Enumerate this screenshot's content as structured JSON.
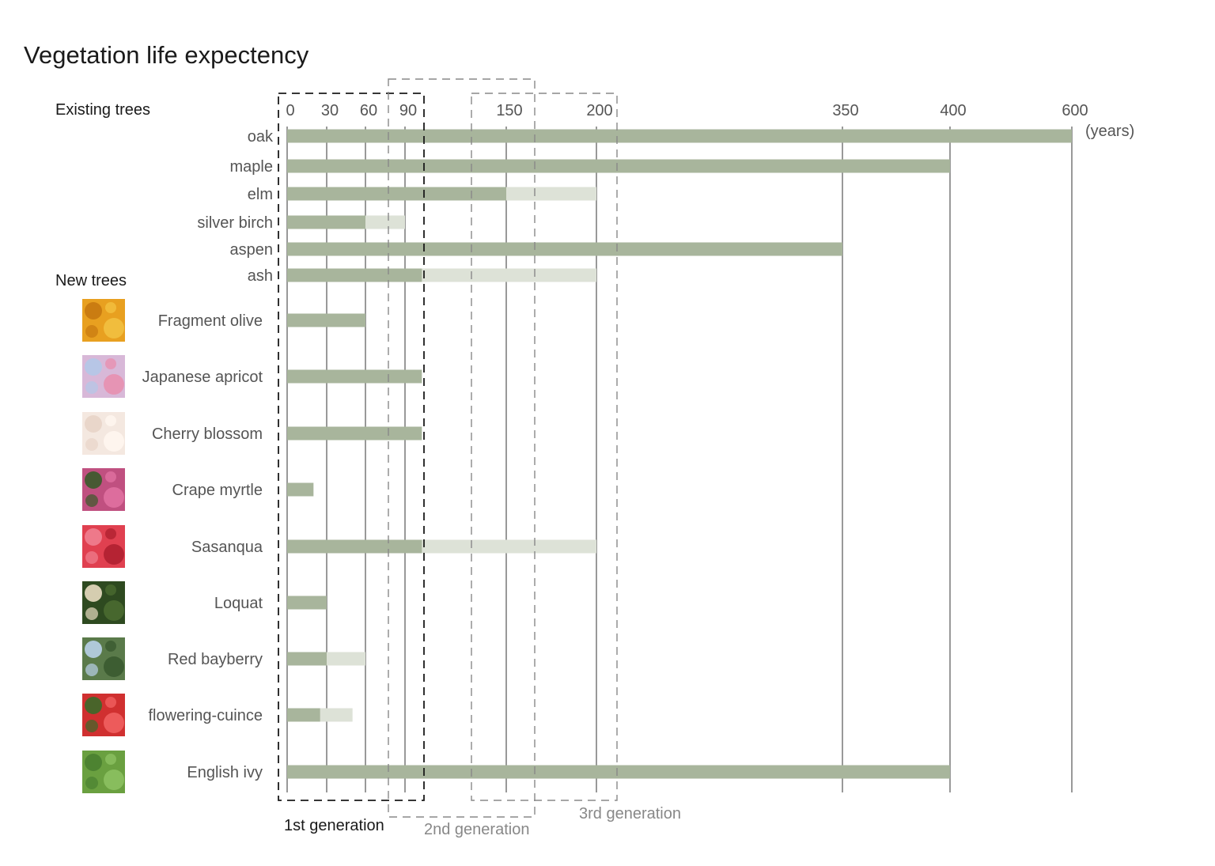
{
  "chart_data": {
    "type": "bar",
    "title": "Vegetation life expectency",
    "unit_label": "(years)",
    "x_ticks": [
      0,
      30,
      60,
      90,
      150,
      200,
      350,
      400,
      600
    ],
    "colors": {
      "main": "#a8b59c",
      "extended": "#dde2d7",
      "grid": "#333333",
      "thumb_bg": "#6f8a5a"
    },
    "sections": [
      {
        "label": "Existing trees",
        "items": [
          {
            "name": "oak",
            "value": 600,
            "extended": null
          },
          {
            "name": "maple",
            "value": 400,
            "extended": null
          },
          {
            "name": "elm",
            "value": 150,
            "extended": 200
          },
          {
            "name": "silver birch",
            "value": 60,
            "extended": 90
          },
          {
            "name": "aspen",
            "value": 350,
            "extended": null
          },
          {
            "name": "ash",
            "value": 100,
            "extended": 200
          }
        ]
      },
      {
        "label": "New trees",
        "items": [
          {
            "name": "Fragment olive",
            "value": 60,
            "extended": null,
            "icon": "orange-flower-thumbnail",
            "thumb": [
              "#e8a020",
              "#c77810",
              "#f2c040"
            ]
          },
          {
            "name": "Japanese apricot",
            "value": 100,
            "extended": null,
            "icon": "pink-blossom-thumbnail",
            "thumb": [
              "#d8b8d8",
              "#b4c8e8",
              "#e890b0"
            ]
          },
          {
            "name": "Cherry blossom",
            "value": 100,
            "extended": null,
            "icon": "white-blossom-thumbnail",
            "thumb": [
              "#f4e8e0",
              "#e8d4c8",
              "#fff6f0"
            ]
          },
          {
            "name": "Crape myrtle",
            "value": 20,
            "extended": null,
            "icon": "magenta-flower-thumbnail",
            "thumb": [
              "#c05080",
              "#3a5a2a",
              "#e070a0"
            ]
          },
          {
            "name": "Sasanqua",
            "value": 100,
            "extended": 200,
            "icon": "red-flower-thumbnail",
            "thumb": [
              "#e04050",
              "#f08090",
              "#b02030"
            ]
          },
          {
            "name": "Loquat",
            "value": 30,
            "extended": null,
            "icon": "loquat-flower-thumbnail",
            "thumb": [
              "#2e4a20",
              "#e8dcc0",
              "#4a6a30"
            ]
          },
          {
            "name": "Red bayberry",
            "value": 30,
            "extended": 60,
            "icon": "bayberry-leaves-thumbnail",
            "thumb": [
              "#5a7a4a",
              "#b8d0e8",
              "#3a5a30"
            ]
          },
          {
            "name": "flowering-cuince",
            "value": 25,
            "extended": 50,
            "icon": "quince-flower-thumbnail",
            "thumb": [
              "#d03030",
              "#3a6a2a",
              "#f06060"
            ]
          },
          {
            "name": "English ivy",
            "value": 400,
            "extended": null,
            "icon": "ivy-leaves-thumbnail",
            "thumb": [
              "#6aa040",
              "#4a8030",
              "#8cc060"
            ]
          }
        ]
      }
    ],
    "generations": [
      {
        "label": "1st generation",
        "color": "#1a1a1a"
      },
      {
        "label": "2nd generation",
        "color": "#888888"
      },
      {
        "label": "3rd generation",
        "color": "#888888"
      }
    ]
  }
}
